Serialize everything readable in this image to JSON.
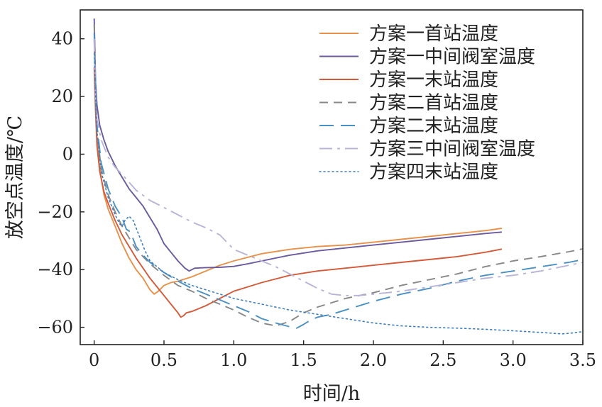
{
  "chart_data": {
    "type": "line",
    "title": "",
    "xlabel": "时间/h",
    "ylabel": "放空点温度/℃",
    "xlim": [
      -0.1,
      3.5
    ],
    "ylim": [
      -66,
      50
    ],
    "xticks": [
      0,
      0.5,
      1.0,
      1.5,
      2.0,
      2.5,
      3.0,
      3.5
    ],
    "xtick_labels": [
      "0",
      "0.5",
      "1.0",
      "1.5",
      "2.0",
      "2.5",
      "3.0",
      "3.5"
    ],
    "yticks": [
      -60,
      -40,
      -20,
      0,
      20,
      40
    ],
    "ytick_labels": [
      "−60",
      "−40",
      "−20",
      "0",
      "20",
      "40"
    ],
    "grid": false,
    "legend_position": "top-right",
    "series": [
      {
        "name": "方案一首站温度",
        "color": "#e8914a",
        "dash": "solid",
        "x": [
          0,
          0.01,
          0.02,
          0.04,
          0.07,
          0.1,
          0.15,
          0.2,
          0.25,
          0.3,
          0.35,
          0.4,
          0.43,
          0.46,
          0.5,
          0.55,
          0.6,
          0.7,
          0.8,
          0.9,
          1.0,
          1.2,
          1.4,
          1.6,
          1.8,
          2.0,
          2.2,
          2.4,
          2.6,
          2.8,
          2.92
        ],
        "y": [
          40,
          18,
          5,
          -5,
          -14,
          -19,
          -25,
          -31,
          -36,
          -40,
          -43,
          -47,
          -48.5,
          -47.5,
          -45.5,
          -44.5,
          -44,
          -42.5,
          -40.5,
          -38.5,
          -37,
          -34.5,
          -33,
          -32,
          -31.5,
          -30.5,
          -29.5,
          -28.5,
          -27.5,
          -26.5,
          -25.7
        ]
      },
      {
        "name": "方案一中间阀室温度",
        "color": "#6b5b9e",
        "dash": "solid",
        "x": [
          0,
          0.01,
          0.02,
          0.04,
          0.07,
          0.1,
          0.15,
          0.2,
          0.25,
          0.3,
          0.35,
          0.4,
          0.45,
          0.5,
          0.55,
          0.6,
          0.65,
          0.68,
          0.72,
          0.8,
          0.9,
          1.0,
          1.1,
          1.2,
          1.4,
          1.6,
          1.8,
          2.0,
          2.2,
          2.4,
          2.6,
          2.8,
          2.92
        ],
        "y": [
          47,
          25,
          17,
          10,
          5,
          1,
          -4,
          -8,
          -12,
          -15,
          -18,
          -22,
          -26,
          -31,
          -34,
          -37,
          -39.5,
          -40.5,
          -39.5,
          -39.3,
          -39.2,
          -38.9,
          -38,
          -37,
          -35,
          -33.5,
          -32.5,
          -31.5,
          -30.5,
          -29.5,
          -28.5,
          -27.5,
          -27
        ]
      },
      {
        "name": "方案一末站温度",
        "color": "#d55a3a",
        "dash": "solid",
        "x": [
          0,
          0.01,
          0.02,
          0.04,
          0.07,
          0.1,
          0.15,
          0.2,
          0.3,
          0.4,
          0.5,
          0.55,
          0.6,
          0.62,
          0.64,
          0.66,
          0.7,
          0.8,
          0.9,
          1.0,
          1.1,
          1.2,
          1.4,
          1.6,
          1.8,
          2.0,
          2.2,
          2.4,
          2.6,
          2.8,
          2.92
        ],
        "y": [
          30,
          15,
          3,
          -6,
          -13,
          -17,
          -23,
          -28,
          -36,
          -43,
          -49,
          -52,
          -55,
          -56.5,
          -56,
          -55,
          -54.5,
          -52.5,
          -50,
          -47.5,
          -46,
          -44.5,
          -42,
          -40.5,
          -39.5,
          -38.5,
          -37.5,
          -36.5,
          -35.5,
          -34,
          -32.9
        ]
      },
      {
        "name": "方案二首站温度",
        "color": "#888888",
        "dash": "12,8",
        "x": [
          0,
          0.01,
          0.02,
          0.05,
          0.1,
          0.15,
          0.2,
          0.25,
          0.3,
          0.4,
          0.5,
          0.6,
          0.7,
          0.8,
          0.9,
          1.0,
          1.1,
          1.2,
          1.3,
          1.4,
          1.5,
          1.6,
          1.7,
          1.8,
          1.9,
          2.0,
          2.2,
          2.4,
          2.6,
          2.8,
          3.0,
          3.2,
          3.4,
          3.5
        ],
        "y": [
          45,
          20,
          8,
          -5,
          -14,
          -20,
          -25,
          -29,
          -33,
          -38,
          -42,
          -45.5,
          -47.5,
          -50,
          -52,
          -54,
          -56.5,
          -58.5,
          -59.5,
          -58,
          -55,
          -53,
          -51.5,
          -50,
          -49,
          -48,
          -45.5,
          -43.5,
          -41.5,
          -39,
          -37,
          -35.5,
          -33.8,
          -32.8
        ]
      },
      {
        "name": "方案二末站温度",
        "color": "#4a90c2",
        "dash": "20,10",
        "x": [
          0,
          0.01,
          0.02,
          0.05,
          0.1,
          0.15,
          0.2,
          0.23,
          0.26,
          0.3,
          0.35,
          0.4,
          0.5,
          0.6,
          0.7,
          0.8,
          0.9,
          1.0,
          1.1,
          1.2,
          1.3,
          1.4,
          1.45,
          1.5,
          1.55,
          1.6,
          1.7,
          1.8,
          1.9,
          2.0,
          2.2,
          2.4,
          2.6,
          2.8,
          3.0,
          3.2,
          3.4,
          3.5
        ],
        "y": [
          42,
          22,
          10,
          -3,
          -12,
          -18,
          -22,
          -26,
          -27,
          -32,
          -35,
          -37.5,
          -41,
          -44,
          -46.5,
          -48.5,
          -50.5,
          -52.5,
          -54.5,
          -57,
          -58.5,
          -59.8,
          -60.3,
          -59,
          -57.5,
          -56.5,
          -55.5,
          -54,
          -52.5,
          -51,
          -48.5,
          -46.5,
          -44,
          -42,
          -40.5,
          -39,
          -37.5,
          -36.5
        ]
      },
      {
        "name": "方案三中间阀室温度",
        "color": "#b8b4d8",
        "dash": "18,7,4,7",
        "x": [
          0,
          0.01,
          0.02,
          0.05,
          0.1,
          0.15,
          0.2,
          0.3,
          0.4,
          0.5,
          0.6,
          0.7,
          0.8,
          0.9,
          1.0,
          1.1,
          1.2,
          1.3,
          1.4,
          1.5,
          1.6,
          1.7,
          1.8,
          1.9,
          2.0,
          2.1,
          2.2,
          2.4,
          2.6,
          2.8,
          3.0,
          3.2,
          3.4,
          3.5
        ],
        "y": [
          40,
          20,
          12,
          5,
          -1,
          -4.5,
          -7,
          -12.5,
          -16,
          -18.5,
          -21,
          -23.5,
          -25.5,
          -28,
          -33,
          -35,
          -37,
          -39,
          -41.5,
          -44,
          -46.5,
          -48.5,
          -49,
          -49,
          -48.5,
          -48,
          -47.5,
          -46,
          -44.5,
          -43,
          -42,
          -40.5,
          -38.5,
          -37.5
        ]
      },
      {
        "name": "方案四末站温度",
        "color": "#3f7fbf",
        "dash": "2,4",
        "x": [
          0,
          0.01,
          0.02,
          0.05,
          0.1,
          0.15,
          0.18,
          0.2,
          0.22,
          0.25,
          0.28,
          0.32,
          0.36,
          0.4,
          0.5,
          0.6,
          0.7,
          0.8,
          0.9,
          1.0,
          1.2,
          1.4,
          1.6,
          1.8,
          2.0,
          2.2,
          2.4,
          2.6,
          2.8,
          3.0,
          3.2,
          3.35,
          3.42,
          3.5
        ],
        "y": [
          35,
          20,
          8,
          -6,
          -15,
          -21,
          -24,
          -25,
          -23,
          -21.5,
          -23,
          -28,
          -33,
          -37,
          -41,
          -43.5,
          -45.5,
          -47,
          -48.5,
          -50,
          -52,
          -54,
          -55.5,
          -57,
          -58.5,
          -59.5,
          -60,
          -60.3,
          -60.7,
          -61.2,
          -61.8,
          -62.3,
          -62,
          -61.5
        ]
      }
    ]
  }
}
